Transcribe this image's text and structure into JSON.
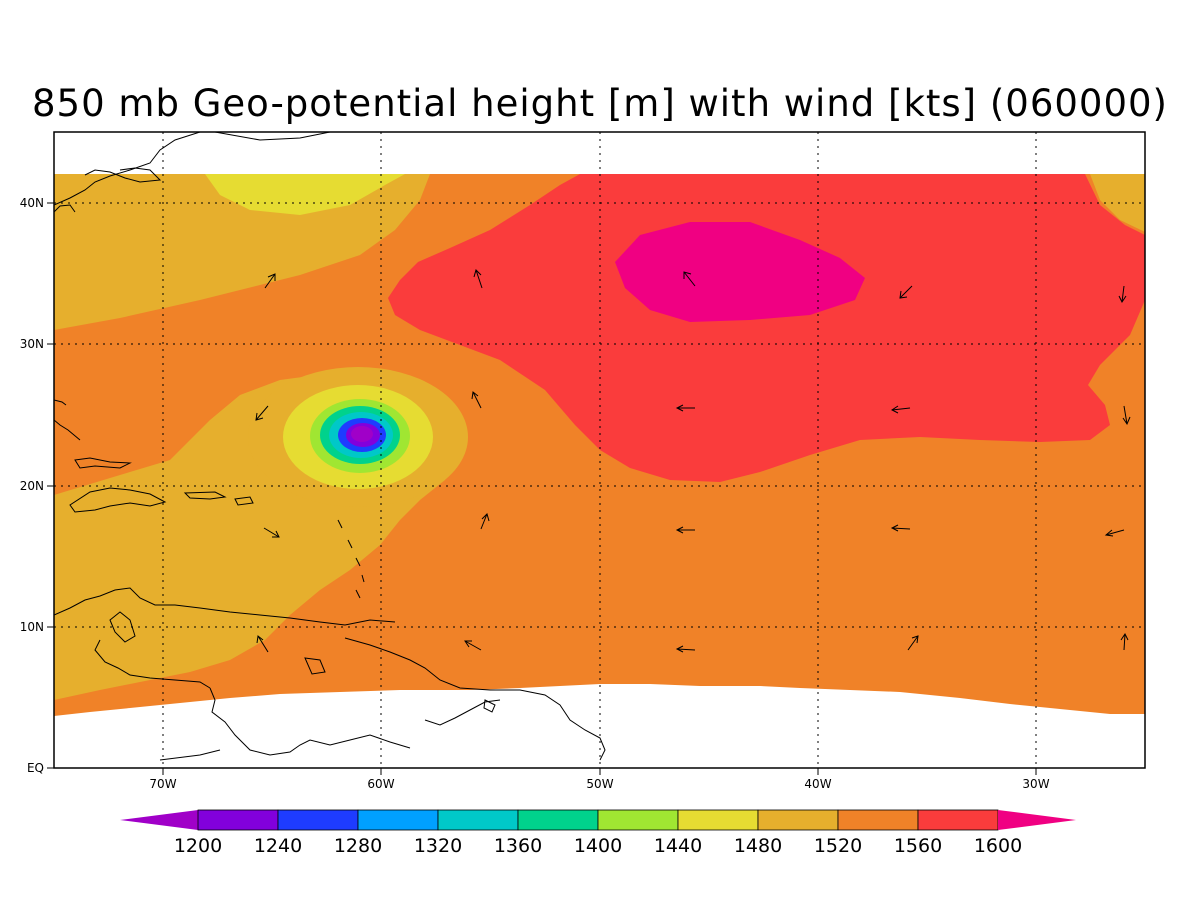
{
  "title": "850 mb Geo-potential height [m] with wind [kts] (060000)",
  "map": {
    "lon_range": [
      -75,
      -25
    ],
    "lat_range": [
      0,
      45
    ],
    "lon_ticks": [
      {
        "value": -70,
        "label": "70W"
      },
      {
        "value": -60,
        "label": "60W"
      },
      {
        "value": -50,
        "label": "50W"
      },
      {
        "value": -40,
        "label": "40W"
      },
      {
        "value": -30,
        "label": "30W"
      }
    ],
    "lat_ticks": [
      {
        "value": 0,
        "label": "EQ"
      },
      {
        "value": 10,
        "label": "10N"
      },
      {
        "value": 20,
        "label": "20N"
      },
      {
        "value": 30,
        "label": "30N"
      },
      {
        "value": 40,
        "label": "40N"
      }
    ],
    "grid": true,
    "data_extent_lat": [
      3.5,
      42
    ],
    "low_center": {
      "lon": -61,
      "lat": 23.5
    },
    "high_center": {
      "lon": -44,
      "lat": 35
    }
  },
  "colorbar": {
    "levels": [
      1200,
      1240,
      1280,
      1320,
      1360,
      1400,
      1440,
      1480,
      1520,
      1560,
      1600
    ],
    "colors": [
      "#a000c8",
      "#8200dc",
      "#1e3cff",
      "#00a0ff",
      "#00c8c8",
      "#00d28c",
      "#a0e632",
      "#e6dc32",
      "#e6af2d",
      "#f08228",
      "#fa3c3c",
      "#f00082"
    ]
  }
}
